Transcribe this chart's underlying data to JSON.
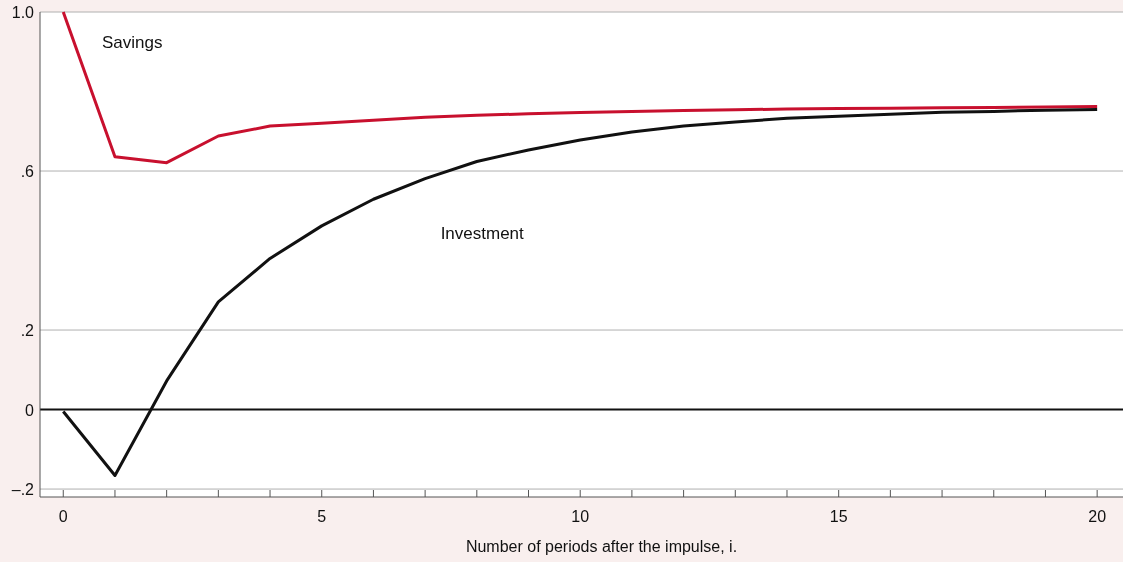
{
  "chart_data": {
    "type": "line",
    "xlabel": "Number of periods after the impulse, i.",
    "x": [
      0,
      1,
      2,
      3,
      4,
      5,
      6,
      7,
      8,
      9,
      10,
      11,
      12,
      13,
      14,
      15,
      16,
      17,
      18,
      19,
      20
    ],
    "series": [
      {
        "name": "Savings",
        "color": "#c8102e",
        "values": [
          1.0,
          0.636,
          0.621,
          0.688,
          0.713,
          0.72,
          0.728,
          0.735,
          0.74,
          0.744,
          0.747,
          0.75,
          0.752,
          0.754,
          0.756,
          0.757,
          0.758,
          0.759,
          0.76,
          0.761,
          0.762
        ]
      },
      {
        "name": "Investment",
        "color": "#111111",
        "values": [
          -0.005,
          -0.166,
          0.072,
          0.271,
          0.38,
          0.462,
          0.529,
          0.581,
          0.624,
          0.653,
          0.678,
          0.698,
          0.713,
          0.723,
          0.733,
          0.738,
          0.743,
          0.748,
          0.75,
          0.753,
          0.755
        ]
      }
    ],
    "xlim": [
      -0.45,
      20.5
    ],
    "ylim": [
      -0.22,
      1.0
    ],
    "xticks": [
      0,
      {
        "value": 1,
        "label": null
      },
      {
        "value": 2,
        "label": null
      },
      {
        "value": 3,
        "label": null
      },
      {
        "value": 4,
        "label": null
      },
      5,
      {
        "value": 6,
        "label": null
      },
      {
        "value": 7,
        "label": null
      },
      {
        "value": 8,
        "label": null
      },
      {
        "value": 9,
        "label": null
      },
      10,
      {
        "value": 11,
        "label": null
      },
      {
        "value": 12,
        "label": null
      },
      {
        "value": 13,
        "label": null
      },
      {
        "value": 14,
        "label": null
      },
      15,
      {
        "value": 16,
        "label": null
      },
      {
        "value": 17,
        "label": null
      },
      {
        "value": 18,
        "label": null
      },
      {
        "value": 19,
        "label": null
      },
      20
    ],
    "yticks": [
      {
        "value": -0.2,
        "label": "–.2"
      },
      0,
      {
        "value": 0.2,
        "label": ".2"
      },
      {
        "value": 0.6,
        "label": ".6"
      },
      {
        "value": 1.0,
        "label": "1.0"
      }
    ],
    "grid": "y",
    "marker": "none",
    "line_style": "solid",
    "ref_lines": [
      {
        "axis": "y",
        "value": 0,
        "color": "#111111"
      }
    ]
  }
}
